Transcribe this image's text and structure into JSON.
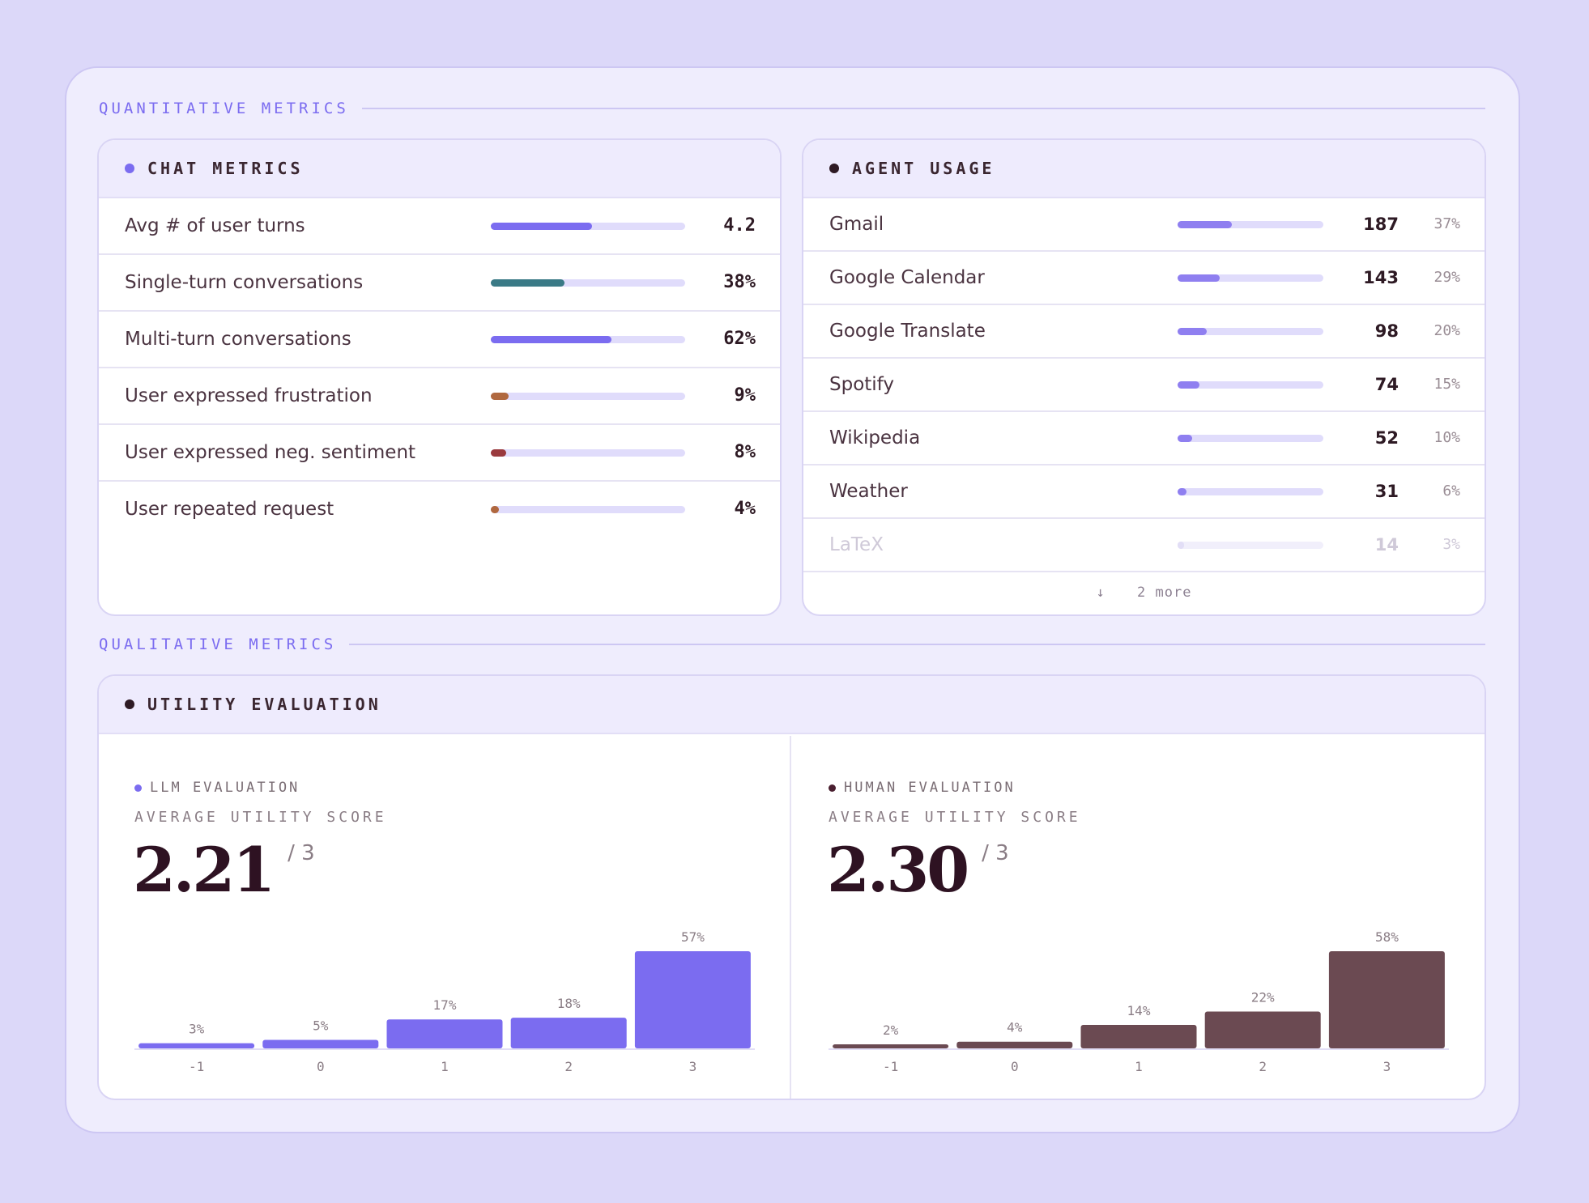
{
  "sections": {
    "quantitative": "QUANTITATIVE METRICS",
    "qualitative": "QUALITATIVE METRICS"
  },
  "chat_metrics": {
    "title": "CHAT METRICS",
    "dot_color": "#7b6cf0",
    "rows": [
      {
        "label": "Avg # of user turns",
        "value": "4.2",
        "fraction": 0.52,
        "color": "#7b6cf0"
      },
      {
        "label": "Single-turn conversations",
        "value": "38%",
        "fraction": 0.38,
        "color": "#3a7a86"
      },
      {
        "label": "Multi-turn conversations",
        "value": "62%",
        "fraction": 0.62,
        "color": "#7b6cf0"
      },
      {
        "label": "User expressed frustration",
        "value": "9%",
        "fraction": 0.09,
        "color": "#b0683f"
      },
      {
        "label": "User expressed neg. sentiment",
        "value": "8%",
        "fraction": 0.08,
        "color": "#9a3a3e"
      },
      {
        "label": "User repeated request",
        "value": "4%",
        "fraction": 0.04,
        "color": "#b0683f"
      }
    ]
  },
  "agent_usage": {
    "title": "AGENT USAGE",
    "dot_color": "#2e1a24",
    "bar_color": "#8f7ff0",
    "rows": [
      {
        "label": "Gmail",
        "count": "187",
        "pct": "37%",
        "fraction": 0.37
      },
      {
        "label": "Google Calendar",
        "count": "143",
        "pct": "29%",
        "fraction": 0.29
      },
      {
        "label": "Google Translate",
        "count": "98",
        "pct": "20%",
        "fraction": 0.2
      },
      {
        "label": "Spotify",
        "count": "74",
        "pct": "15%",
        "fraction": 0.15
      },
      {
        "label": "Wikipedia",
        "count": "52",
        "pct": "10%",
        "fraction": 0.1
      },
      {
        "label": "Weather",
        "count": "31",
        "pct": "6%",
        "fraction": 0.06
      },
      {
        "label": "LaTeX",
        "count": "14",
        "pct": "3%",
        "fraction": 0.03
      }
    ],
    "more_arrow": "↓",
    "more_label": "2 more"
  },
  "utility_evaluation": {
    "title": "UTILITY EVALUATION",
    "dot_color": "#2e1a24",
    "llm": {
      "tag": "LLM EVALUATION",
      "dot_color": "#7b6cf0",
      "subtitle": "AVERAGE UTILITY SCORE",
      "score": "2.21",
      "denominator": "/ 3"
    },
    "human": {
      "tag": "HUMAN EVALUATION",
      "dot_color": "#4a1f30",
      "subtitle": "AVERAGE UTILITY SCORE",
      "score": "2.30",
      "denominator": "/ 3"
    }
  },
  "chart_data": [
    {
      "type": "bar",
      "categories": [
        "-1",
        "0",
        "1",
        "2",
        "3"
      ],
      "values": [
        3,
        5,
        17,
        18,
        57
      ],
      "labels": [
        "3%",
        "5%",
        "17%",
        "18%",
        "57%"
      ],
      "color": "#7b6cf0",
      "ylim": [
        0,
        57
      ],
      "grid": false
    },
    {
      "type": "bar",
      "categories": [
        "-1",
        "0",
        "1",
        "2",
        "3"
      ],
      "values": [
        2,
        4,
        14,
        22,
        58
      ],
      "labels": [
        "2%",
        "4%",
        "14%",
        "22%",
        "58%"
      ],
      "color": "#6b4a52",
      "ylim": [
        0,
        58
      ],
      "grid": false
    }
  ]
}
